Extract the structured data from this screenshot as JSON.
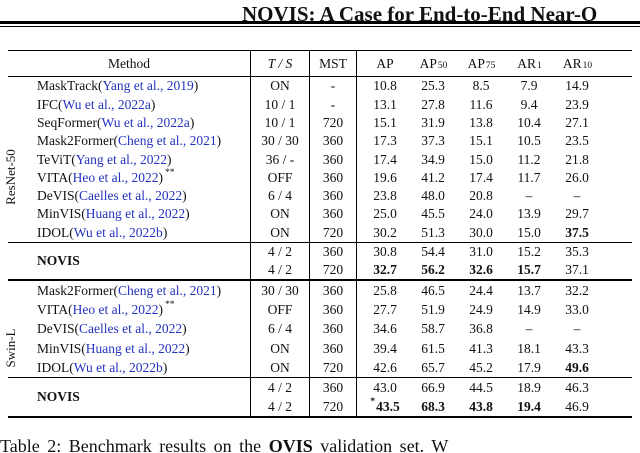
{
  "page_title": "NOVIS: A Case for End-to-End Near-O",
  "table": {
    "header": {
      "method": "Method",
      "ts": "T / S",
      "mst": "MST",
      "metrics": [
        {
          "base": "AP",
          "sub": ""
        },
        {
          "base": "AP",
          "sub": "50"
        },
        {
          "base": "AP",
          "sub": "75"
        },
        {
          "base": "AR",
          "sub": "1"
        },
        {
          "base": "AR",
          "sub": "10"
        }
      ]
    },
    "punct": {
      "open": " (",
      "close": ")",
      "stars": "**",
      "star": "*"
    },
    "groups": [
      {
        "backbone": "ResNet-50",
        "rows": [
          {
            "name": "MaskTrack",
            "cite": "Yang et al., 2019",
            "ts": "ON",
            "mst": "-",
            "v": [
              "10.8",
              "25.3",
              "8.5",
              "7.9",
              "14.9"
            ]
          },
          {
            "name": "IFC",
            "cite": "Wu et al., 2022a",
            "ts": "10 / 1",
            "mst": "-",
            "v": [
              "13.1",
              "27.8",
              "11.6",
              "9.4",
              "23.9"
            ]
          },
          {
            "name": "SeqFormer",
            "cite": "Wu et al., 2022a",
            "ts": "10 / 1",
            "mst": "720",
            "v": [
              "15.1",
              "31.9",
              "13.8",
              "10.4",
              "27.1"
            ]
          },
          {
            "name": "Mask2Former",
            "cite": "Cheng et al., 2021",
            "ts": "30 / 30",
            "mst": "360",
            "v": [
              "17.3",
              "37.3",
              "15.1",
              "10.5",
              "23.5"
            ]
          },
          {
            "name": "TeViT",
            "cite": "Yang et al., 2022",
            "ts": "36 / -",
            "mst": "360",
            "v": [
              "17.4",
              "34.9",
              "15.0",
              "11.2",
              "21.8"
            ]
          },
          {
            "name": "VITA",
            "cite": "Heo et al., 2022",
            "ts": "OFF",
            "mst": "360",
            "v": [
              "19.6",
              "41.2",
              "17.4",
              "11.7",
              "26.0"
            ]
          },
          {
            "name": "DeVIS",
            "cite": "Caelles et al., 2022",
            "ts": "6 / 4",
            "mst": "360",
            "v": [
              "23.8",
              "48.0",
              "20.8",
              "–",
              "–"
            ]
          },
          {
            "name": "MinVIS",
            "cite": "Huang et al., 2022",
            "ts": "ON",
            "mst": "360",
            "v": [
              "25.0",
              "45.5",
              "24.0",
              "13.9",
              "29.7"
            ]
          },
          {
            "name": "IDOL",
            "cite": "Wu et al., 2022b",
            "ts": "ON",
            "mst": "720",
            "v": [
              "30.2",
              "51.3",
              "30.0",
              "15.0",
              "37.5"
            ]
          }
        ],
        "novis": {
          "label": "NOVIS",
          "rows": [
            {
              "ts": "4 / 2",
              "mst": "360",
              "v": [
                "30.8",
                "54.4",
                "31.0",
                "15.2",
                "35.3"
              ]
            },
            {
              "ts": "4 / 2",
              "mst": "720",
              "v": [
                "32.7",
                "56.2",
                "32.6",
                "15.7",
                "37.1"
              ]
            }
          ]
        }
      },
      {
        "backbone": "Swin-L",
        "rows": [
          {
            "name": "Mask2Former",
            "cite": "Cheng et al., 2021",
            "ts": "30 / 30",
            "mst": "360",
            "v": [
              "25.8",
              "46.5",
              "24.4",
              "13.7",
              "32.2"
            ]
          },
          {
            "name": "VITA",
            "cite": "Heo et al., 2022",
            "ts": "OFF",
            "mst": "360",
            "v": [
              "27.7",
              "51.9",
              "24.9",
              "14.9",
              "33.0"
            ]
          },
          {
            "name": "DeVIS",
            "cite": "Caelles et al., 2022",
            "ts": "6 / 4",
            "mst": "360",
            "v": [
              "34.6",
              "58.7",
              "36.8",
              "–",
              "–"
            ]
          },
          {
            "name": "MinVIS",
            "cite": "Huang et al., 2022",
            "ts": "ON",
            "mst": "360",
            "v": [
              "39.4",
              "61.5",
              "41.3",
              "18.1",
              "43.3"
            ]
          },
          {
            "name": "IDOL",
            "cite": "Wu et al., 2022b",
            "ts": "ON",
            "mst": "720",
            "v": [
              "42.6",
              "65.7",
              "45.2",
              "17.9",
              "49.6"
            ]
          }
        ],
        "novis": {
          "label": "NOVIS",
          "rows": [
            {
              "ts": "4 / 2",
              "mst": "360",
              "v": [
                "43.0",
                "66.9",
                "44.5",
                "18.9",
                "46.3"
              ]
            },
            {
              "ts": "4 / 2",
              "mst": "720",
              "v": [
                "43.5",
                "68.3",
                "43.8",
                "19.4",
                "46.9"
              ]
            }
          ]
        }
      }
    ]
  },
  "caption": {
    "prefix": "Table 2: Benchmark results on the ",
    "bold": "OVIS",
    "suffix": " validation set. W"
  },
  "colors": {
    "citation": "#2433bf"
  }
}
